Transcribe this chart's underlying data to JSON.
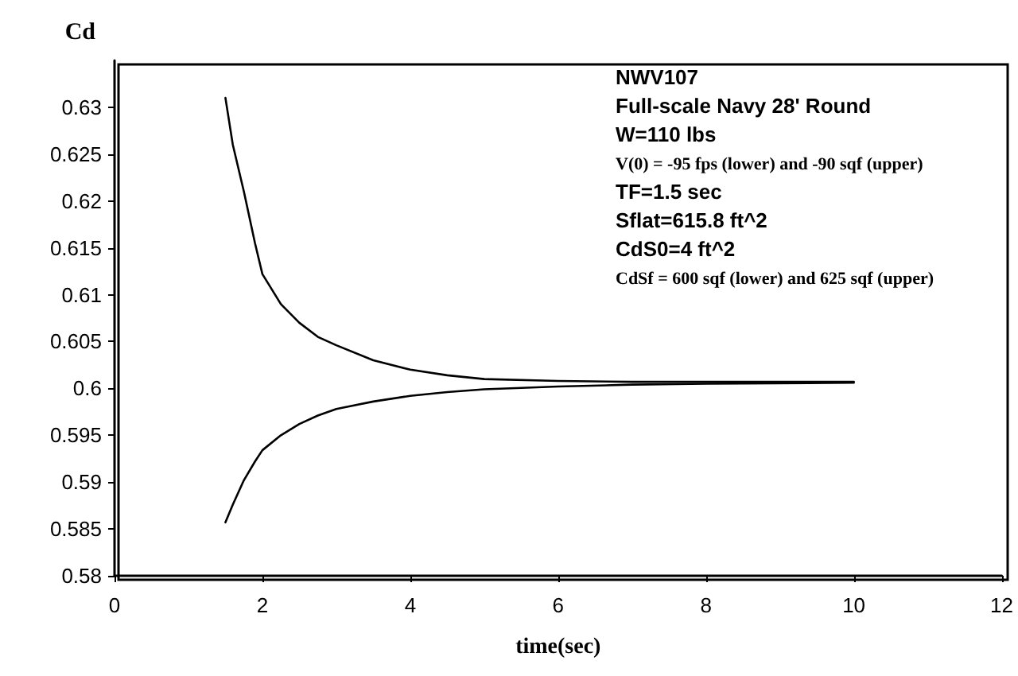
{
  "chart_data": {
    "type": "line",
    "xlabel": "time(sec)",
    "ylabel": "Cd",
    "xlim": [
      0,
      12
    ],
    "xticks": [
      0,
      2,
      4,
      6,
      8,
      10,
      12
    ],
    "ylim": [
      0.58,
      0.635
    ],
    "yticks": [
      0.58,
      0.585,
      0.59,
      0.595,
      0.6,
      0.605,
      0.61,
      0.615,
      0.62,
      0.625,
      0.63
    ],
    "grid": false,
    "marker": "none",
    "line_style": "solid",
    "annotations": [
      "NWV107",
      "Full-scale Navy 28' Round",
      "W=110 lbs",
      "V(0) = -95 fps (lower) and -90 sqf (upper)",
      "TF=1.5 sec",
      "Sflat=615.8 ft^2",
      "CdS0=4 ft^2",
      "CdSf = 600 sqf (lower) and 625 sqf (upper)"
    ],
    "series": [
      {
        "color": "#000000",
        "x": [
          1.5,
          1.6,
          1.75,
          1.9,
          2,
          2.25,
          2.5,
          2.75,
          3,
          3.5,
          4,
          4.5,
          5,
          6,
          7,
          8,
          10
        ],
        "values": [
          0.631,
          0.626,
          0.621,
          0.6155,
          0.6122,
          0.609,
          0.607,
          0.6055,
          0.6046,
          0.603,
          0.602,
          0.6014,
          0.601,
          0.6008,
          0.6007,
          0.6007,
          0.6007
        ]
      },
      {
        "color": "#000000",
        "x": [
          1.5,
          1.6,
          1.75,
          1.9,
          2,
          2.25,
          2.5,
          2.75,
          3,
          3.5,
          4,
          4.5,
          5,
          6,
          7,
          8,
          10
        ],
        "values": [
          0.5857,
          0.5876,
          0.5902,
          0.5922,
          0.5934,
          0.595,
          0.5962,
          0.5971,
          0.5978,
          0.5986,
          0.5992,
          0.5996,
          0.5999,
          0.6002,
          0.6004,
          0.6005,
          0.6006
        ]
      }
    ]
  }
}
